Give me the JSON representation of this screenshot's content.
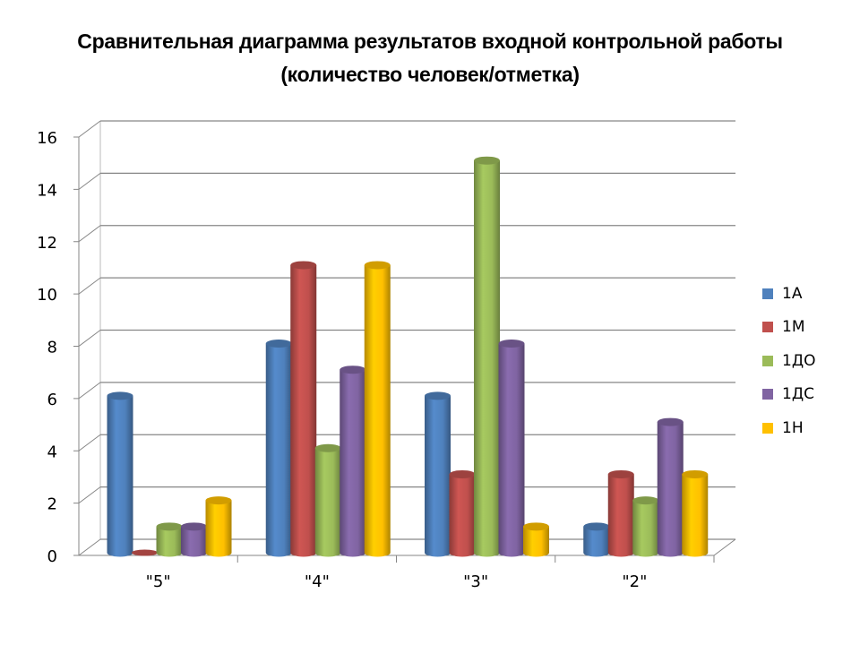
{
  "title_line1": "Сравнительная диаграмма результатов входной контрольной работы",
  "title_line2": "(количество человек/отметка)",
  "chart_data": {
    "type": "bar",
    "subtype": "3d-cylinder-clustered",
    "title": "Сравнительная диаграмма результатов входной контрольной работы (количество человек/отметка)",
    "xlabel": "",
    "ylabel": "",
    "categories": [
      "\"5\"",
      "\"4\"",
      "\"3\"",
      "\"2\""
    ],
    "series": [
      {
        "name": "1А",
        "color": "#4F81BD",
        "values": [
          6,
          8,
          6,
          1
        ]
      },
      {
        "name": "1М",
        "color": "#C0504D",
        "values": [
          0,
          11,
          3,
          3
        ]
      },
      {
        "name": "1ДО",
        "color": "#9BBB59",
        "values": [
          1,
          4,
          15,
          2
        ]
      },
      {
        "name": "1ДС",
        "color": "#8064A2",
        "values": [
          1,
          7,
          8,
          5
        ]
      },
      {
        "name": "1Н",
        "color": "#FFC000",
        "values": [
          2,
          11,
          1,
          3
        ]
      }
    ],
    "ylim": [
      0,
      16
    ],
    "yticks": [
      0,
      2,
      4,
      6,
      8,
      10,
      12,
      14,
      16
    ],
    "grid": true,
    "legend_position": "right"
  }
}
